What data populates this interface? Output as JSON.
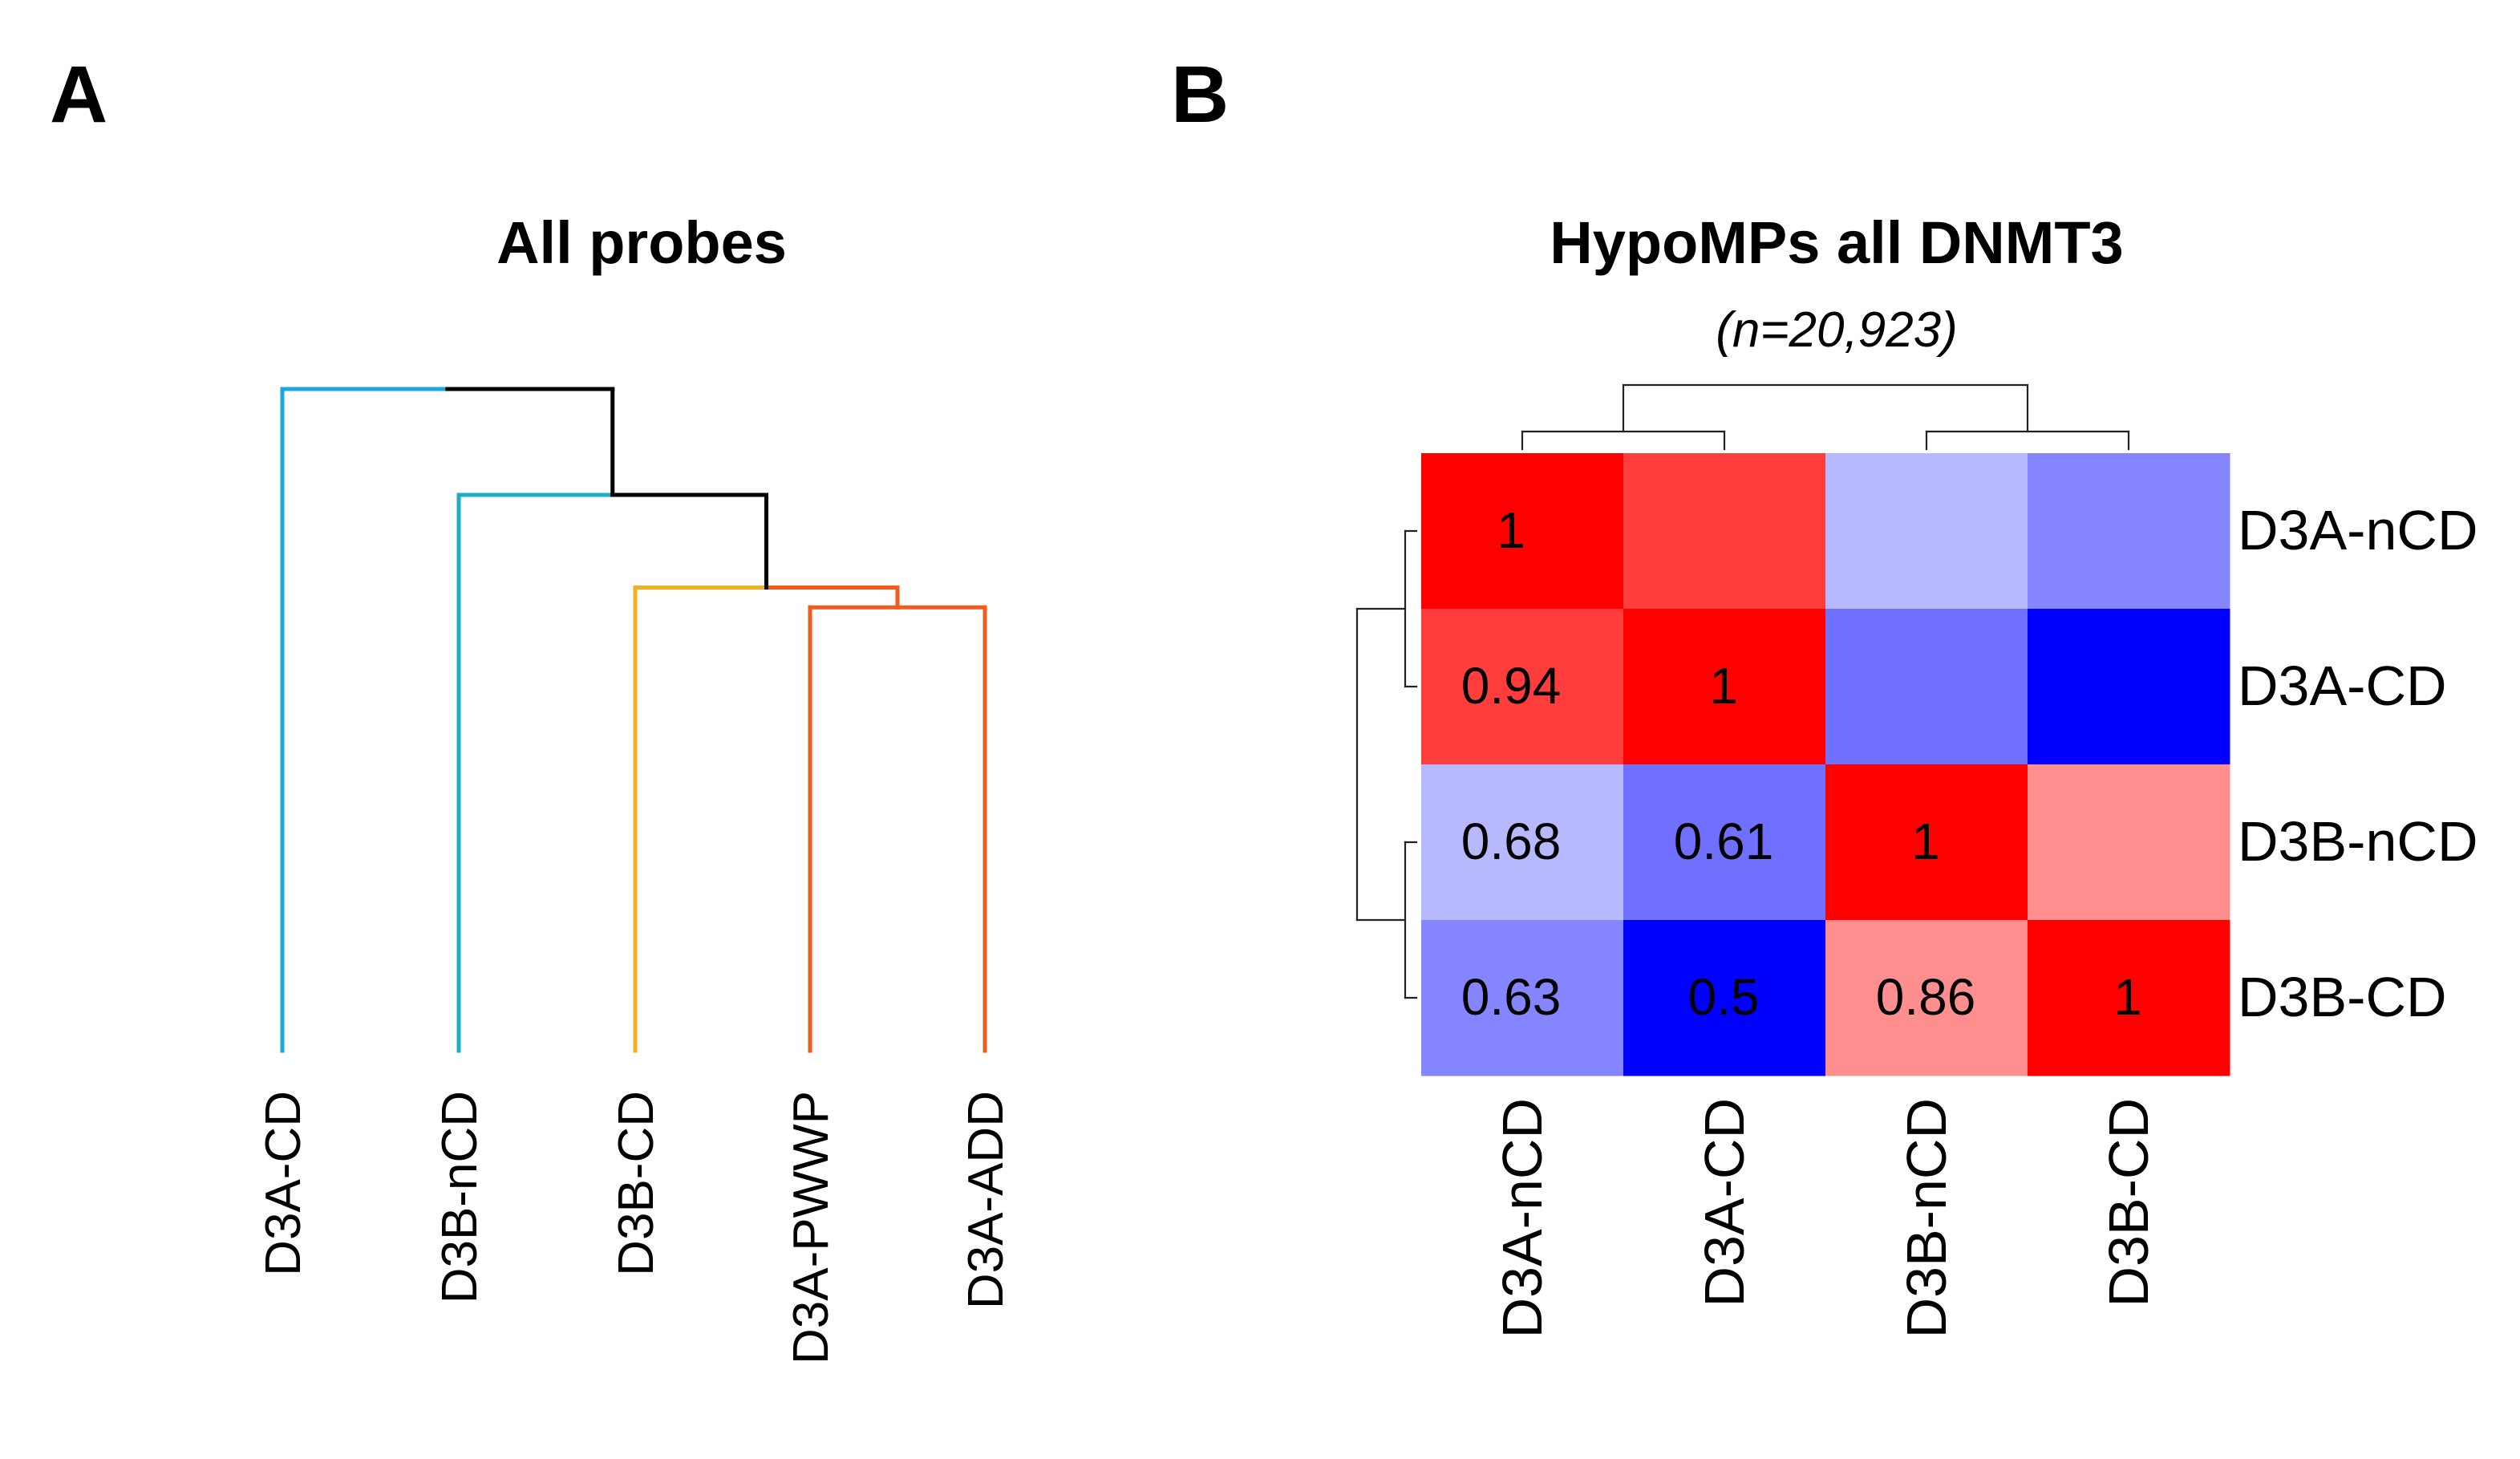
{
  "panels": {
    "a_label": "A",
    "b_label": "B"
  },
  "chart_data": [
    {
      "type": "dendrogram",
      "title": "All probes",
      "leaves": [
        "D3A-CD",
        "D3B-nCD",
        "D3B-CD",
        "D3A-PWWP",
        "D3A-ADD"
      ],
      "merges": [
        {
          "join": [
            "D3A-PWWP",
            "D3A-ADD"
          ],
          "height": 0.67,
          "color": "#f25a1e"
        },
        {
          "join": [
            "D3B-CD",
            "(D3A-PWWP, D3A-ADD)"
          ],
          "height": 0.7,
          "color": "#f2b120"
        },
        {
          "join": [
            "D3B-nCD",
            "(D3B-CD, D3A-PWWP, D3A-ADD)"
          ],
          "height": 0.84,
          "color": "#1aafc4"
        },
        {
          "join": [
            "D3A-CD",
            "(D3B-nCD, D3B-CD, D3A-PWWP, D3A-ADD)"
          ],
          "height": 1.0,
          "color": "#1aa7dd"
        }
      ],
      "leaf_colors": [
        "#1aa7dd",
        "#1aafc4",
        "#f2b120",
        "#f25a1e",
        "#f25a1e"
      ]
    },
    {
      "type": "heatmap",
      "title": "HypoMPs all DNMT3",
      "subtitle": "(n=20,923)",
      "rows": [
        "D3A-nCD",
        "D3A-CD",
        "D3B-nCD",
        "D3B-CD"
      ],
      "cols": [
        "D3A-nCD",
        "D3A-CD",
        "D3B-nCD",
        "D3B-CD"
      ],
      "values": [
        [
          1,
          0.94,
          0.68,
          0.63
        ],
        [
          0.94,
          1,
          0.61,
          0.5
        ],
        [
          0.68,
          0.61,
          1,
          0.86
        ],
        [
          0.63,
          0.5,
          0.86,
          1
        ]
      ],
      "labels": [
        [
          "1",
          "",
          "",
          ""
        ],
        [
          "0.94",
          "1",
          "",
          ""
        ],
        [
          "0.68",
          "0.61",
          "1",
          ""
        ],
        [
          "0.63",
          "0.5",
          "0.86",
          "1"
        ]
      ],
      "color_scale": {
        "low": 0.5,
        "mid": 0.75,
        "high": 1.0,
        "low_color": "#0000ff",
        "mid_color": "#ffffff",
        "high_color": "#ff0000"
      },
      "row_dendrogram": [
        [
          "D3A-nCD",
          "D3A-CD"
        ],
        [
          "D3B-nCD",
          "D3B-CD"
        ]
      ],
      "col_dendrogram": [
        [
          "D3A-nCD",
          "D3A-CD"
        ],
        [
          "D3B-nCD",
          "D3B-CD"
        ]
      ]
    }
  ]
}
